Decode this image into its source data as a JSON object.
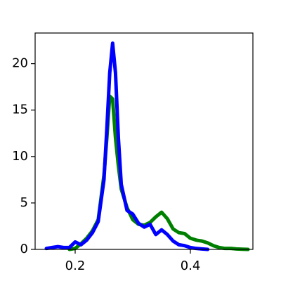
{
  "chart_data": {
    "type": "line",
    "x": [
      0.14,
      0.15,
      0.16,
      0.17,
      0.18,
      0.19,
      0.2,
      0.21,
      0.22,
      0.23,
      0.24,
      0.25,
      0.255,
      0.26,
      0.265,
      0.27,
      0.275,
      0.28,
      0.29,
      0.3,
      0.31,
      0.32,
      0.33,
      0.34,
      0.35,
      0.36,
      0.37,
      0.38,
      0.39,
      0.4,
      0.41,
      0.42,
      0.43,
      0.44,
      0.45,
      0.46,
      0.47,
      0.48,
      0.49,
      0.5
    ],
    "series": [
      {
        "color": "green",
        "values": [
          null,
          null,
          null,
          null,
          null,
          0.0,
          0.1,
          0.6,
          1.2,
          2.0,
          3.2,
          8,
          12,
          16.5,
          16.2,
          12,
          9,
          6.5,
          4.5,
          3.2,
          2.7,
          2.6,
          2.9,
          3.5,
          4.0,
          3.3,
          2.2,
          1.8,
          1.7,
          1.2,
          1.0,
          0.9,
          0.7,
          0.4,
          0.2,
          0.1,
          0.1,
          0.05,
          0.02,
          0.0
        ]
      },
      {
        "color": "blue",
        "values": [
          null,
          0.1,
          0.2,
          0.3,
          0.2,
          0.2,
          0.8,
          0.5,
          1.0,
          1.8,
          3.0,
          7.5,
          13,
          19,
          22.2,
          19,
          12,
          7,
          4.2,
          3.8,
          2.8,
          2.4,
          2.7,
          1.6,
          2.1,
          1.6,
          0.9,
          0.5,
          0.4,
          0.2,
          0.1,
          0.05,
          0.0,
          null,
          null,
          null,
          null,
          null,
          null,
          null
        ]
      }
    ],
    "xlim": [
      0.1305,
      0.5085
    ],
    "xticks": [
      0.2,
      0.4
    ],
    "ylim": [
      0,
      23.3
    ],
    "yticks": [
      0,
      5,
      10,
      15,
      20
    ]
  }
}
